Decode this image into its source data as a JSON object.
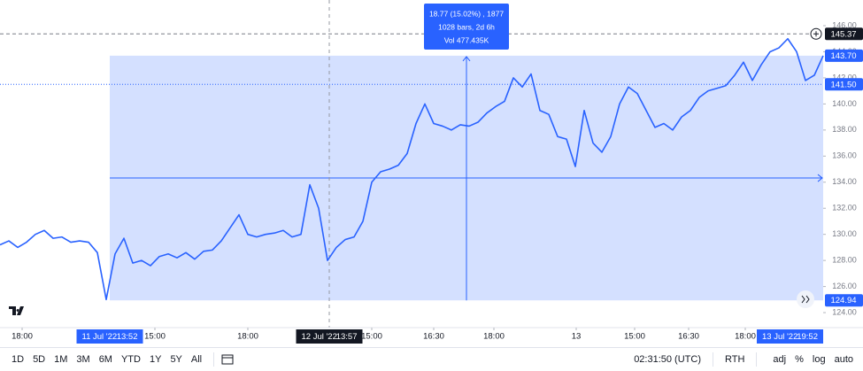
{
  "chart_data": {
    "type": "line",
    "color": "#2962ff",
    "x": [
      0,
      1,
      2,
      3,
      4,
      5,
      6,
      7,
      8,
      9,
      10,
      11,
      12,
      13,
      14,
      15,
      16,
      17,
      18,
      19,
      20,
      21,
      22,
      23,
      24,
      25,
      26,
      27,
      28,
      29,
      30,
      31,
      32,
      33,
      34,
      35,
      36,
      37,
      38,
      39,
      40,
      41,
      42,
      43,
      44,
      45,
      46,
      47,
      48,
      49,
      50,
      51,
      52,
      53,
      54,
      55,
      56,
      57,
      58,
      59,
      60,
      61,
      62,
      63,
      64,
      65,
      66,
      67,
      68,
      69,
      70,
      71,
      72,
      73,
      74,
      75,
      76,
      77,
      78,
      79,
      80,
      81,
      82,
      83,
      84,
      85,
      86,
      87,
      88,
      89,
      90,
      91,
      92,
      93
    ],
    "values": [
      129.2,
      129.5,
      129.0,
      129.4,
      130.0,
      130.3,
      129.7,
      129.8,
      129.4,
      129.5,
      129.4,
      128.6,
      125.0,
      128.5,
      129.7,
      127.8,
      128.0,
      127.6,
      128.3,
      128.5,
      128.2,
      128.6,
      128.1,
      128.7,
      128.8,
      129.5,
      130.5,
      131.5,
      130.0,
      129.8,
      130.0,
      130.1,
      130.3,
      129.8,
      130.0,
      133.8,
      132.0,
      128.0,
      129.0,
      129.6,
      129.8,
      131.0,
      134.0,
      134.8,
      135.0,
      135.3,
      136.2,
      138.5,
      140.0,
      138.5,
      138.3,
      138.0,
      138.4,
      138.3,
      138.6,
      139.3,
      139.8,
      140.2,
      142.0,
      141.3,
      142.3,
      139.5,
      139.2,
      137.5,
      137.3,
      135.2,
      139.5,
      137.0,
      136.3,
      137.5,
      140.0,
      141.3,
      140.8,
      139.5,
      138.2,
      138.5,
      138.0,
      139.0,
      139.5,
      140.5,
      141.0,
      141.2,
      141.4,
      142.2,
      143.2,
      141.8,
      143.0,
      144.0,
      144.3,
      145.0,
      144.0,
      141.8,
      142.2,
      143.7
    ],
    "xlim": [
      0,
      93
    ],
    "ylim": [
      122.85,
      147.97
    ],
    "yticks": [
      {
        "value": 124,
        "label": "124.00"
      },
      {
        "value": 126,
        "label": "126.00"
      },
      {
        "value": 128,
        "label": "128.00"
      },
      {
        "value": 130,
        "label": "130.00"
      },
      {
        "value": 132,
        "label": "132.00"
      },
      {
        "value": 134,
        "label": "134.00"
      },
      {
        "value": 136,
        "label": "136.00"
      },
      {
        "value": 138,
        "label": "138.00"
      },
      {
        "value": 140,
        "label": "140.00"
      },
      {
        "value": 142,
        "label": "142.00"
      },
      {
        "value": 144,
        "label": "144.00"
      },
      {
        "value": 146,
        "label": "146.00"
      }
    ],
    "xticks": [
      {
        "value": 2.5,
        "label": "18:00"
      },
      {
        "value": 17.5,
        "label": "15:00"
      },
      {
        "value": 28,
        "label": "18:00"
      },
      {
        "value": 42,
        "label": "15:00"
      },
      {
        "value": 49,
        "label": "16:30"
      },
      {
        "value": 55.8,
        "label": "18:00"
      },
      {
        "value": 65.1,
        "label": "13"
      },
      {
        "value": 71.7,
        "label": "15:00"
      },
      {
        "value": 77.8,
        "label": "16:30"
      },
      {
        "value": 84.2,
        "label": "18:00"
      }
    ],
    "price_labels": [
      145.37,
      {
        "value": 143.7,
        "label": "143.70"
      },
      {
        "value": 141.5,
        "label": "141.50"
      },
      124.94
    ],
    "measure": {
      "x_start": 12.4,
      "x_end": 93,
      "lines": [
        "18.77 (15.02%) , 1877",
        "1028 bars, 2d 6h",
        "Vol 477.435K"
      ]
    },
    "time_labels": [
      {
        "value": 12.4,
        "date": "11 Jul '22",
        "time": "13:52"
      },
      {
        "value": 37.2,
        "date": "12 Jul '22",
        "time": "13:57"
      },
      {
        "value": 93,
        "date": "13 Jul '22",
        "time": "19:52"
      }
    ]
  },
  "toolbar": {
    "intervals": [
      "1D",
      "5D",
      "1M",
      "3M",
      "6M",
      "YTD",
      "1Y",
      "5Y",
      "All"
    ],
    "clock": "02:31:50 (UTC)",
    "session": "RTH",
    "options": [
      "adj",
      "%",
      "log",
      "auto"
    ]
  }
}
